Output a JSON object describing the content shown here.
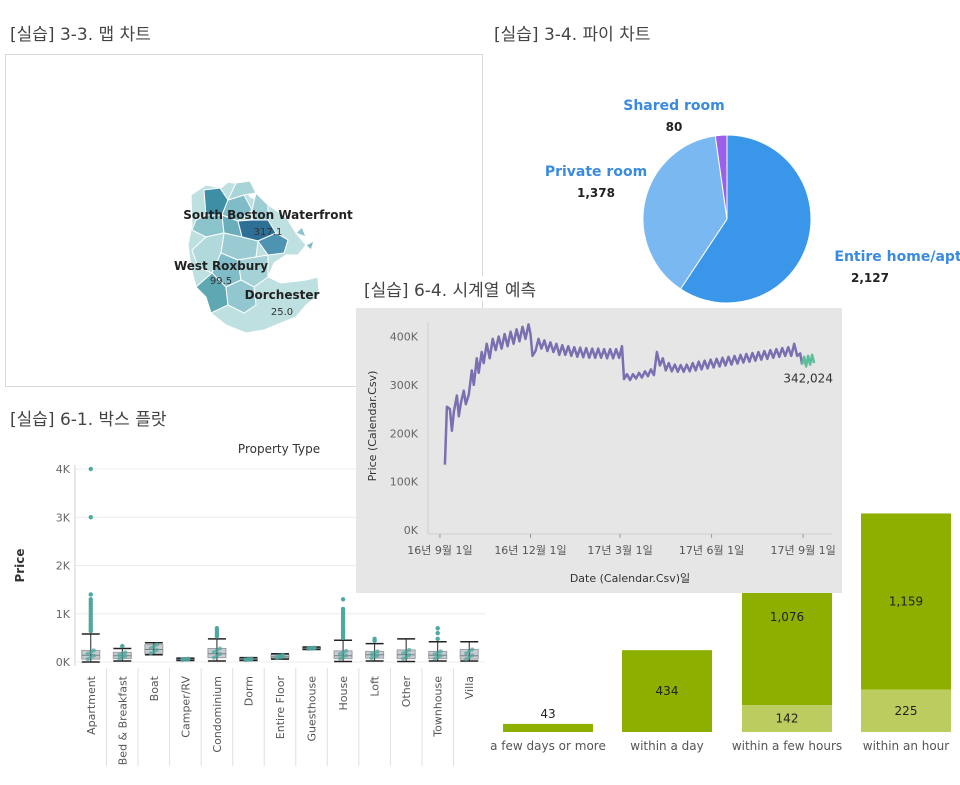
{
  "titles": {
    "map": "[실습] 3-3. 맵 차트",
    "pie": "[실습] 3-4. 파이 차트",
    "box": "[실습] 6-1. 박스 플랏",
    "ts": "[실습] 6-4. 시계열 예측"
  },
  "chart_data": [
    {
      "type": "map",
      "labels": [
        {
          "name": "South Boston Waterfront",
          "value": "317.1"
        },
        {
          "name": "West Roxbury",
          "value": "99.5"
        },
        {
          "name": "Dorchester",
          "value": "25.0"
        }
      ]
    },
    {
      "type": "pie",
      "slices": [
        {
          "name": "Entire home/apt",
          "value": 2127,
          "label": "2,127",
          "color": "#3a96e8"
        },
        {
          "name": "Private room",
          "value": 1378,
          "label": "1,378",
          "color": "#7ab8f1"
        },
        {
          "name": "Shared room",
          "value": 80,
          "label": "80",
          "color": "#9b5fe8"
        }
      ],
      "label_color": "#3a8be0"
    },
    {
      "type": "box",
      "title": "Property Type",
      "ylabel": "Price",
      "yticks": [
        "0K",
        "1K",
        "2K",
        "3K",
        "4K"
      ],
      "ylim": [
        0,
        4000
      ],
      "categories": [
        {
          "name": "Apartment",
          "q1": 60,
          "q3": 240,
          "lw": 0,
          "uw": 580,
          "med": 140,
          "outliers": [
            640,
            680,
            720,
            760,
            800,
            850,
            900,
            950,
            1000,
            1050,
            1100,
            1150,
            1200,
            1250,
            1300,
            1400,
            3000,
            4000
          ]
        },
        {
          "name": "Bed & Breakfast",
          "q1": 70,
          "q3": 200,
          "lw": 20,
          "uw": 280,
          "med": 130,
          "outliers": [
            330
          ]
        },
        {
          "name": "Boat",
          "q1": 180,
          "q3": 360,
          "lw": 150,
          "uw": 400,
          "med": 260,
          "outliers": []
        },
        {
          "name": "Camper/RV",
          "q1": 40,
          "q3": 70,
          "lw": 30,
          "uw": 80,
          "med": 55,
          "outliers": []
        },
        {
          "name": "Condominium",
          "q1": 90,
          "q3": 280,
          "lw": 20,
          "uw": 480,
          "med": 170,
          "outliers": [
            530,
            560,
            600,
            650,
            700
          ]
        },
        {
          "name": "Dorm",
          "q1": 40,
          "q3": 70,
          "lw": 30,
          "uw": 90,
          "med": 55,
          "outliers": []
        },
        {
          "name": "Entire Floor",
          "q1": 80,
          "q3": 150,
          "lw": 60,
          "uw": 170,
          "med": 110,
          "outliers": []
        },
        {
          "name": "Guesthouse",
          "q1": 270,
          "q3": 300,
          "lw": 260,
          "uw": 310,
          "med": 285,
          "outliers": []
        },
        {
          "name": "House",
          "q1": 70,
          "q3": 230,
          "lw": 10,
          "uw": 450,
          "med": 130,
          "outliers": [
            500,
            540,
            580,
            620,
            660,
            700,
            750,
            800,
            850,
            900,
            950,
            1000,
            1050,
            1100,
            1300
          ]
        },
        {
          "name": "Loft",
          "q1": 80,
          "q3": 220,
          "lw": 20,
          "uw": 380,
          "med": 150,
          "outliers": [
            440,
            480
          ]
        },
        {
          "name": "Other",
          "q1": 70,
          "q3": 250,
          "lw": 10,
          "uw": 480,
          "med": 150,
          "outliers": []
        },
        {
          "name": "Townhouse",
          "q1": 70,
          "q3": 220,
          "lw": 20,
          "uw": 420,
          "med": 140,
          "outliers": [
            480,
            600,
            700
          ]
        },
        {
          "name": "Villa",
          "q1": 60,
          "q3": 260,
          "lw": 20,
          "uw": 420,
          "med": 130,
          "outliers": []
        }
      ],
      "colors": {
        "box": "#9aa0a6",
        "point": "#4fa8a0",
        "whisker": "#222222"
      }
    },
    {
      "type": "line",
      "ylabel": "Price (Calendar.Csv)",
      "xlabel": "Date (Calendar.Csv)일",
      "yticks": [
        "0K",
        "100K",
        "200K",
        "300K",
        "400K"
      ],
      "ylim": [
        0,
        430000
      ],
      "xticks": [
        {
          "label": "16년 9월 1일",
          "date": "2016-09-01"
        },
        {
          "label": "16년 12월 1일",
          "date": "2016-12-01"
        },
        {
          "label": "17년 3월 1일",
          "date": "2017-03-01"
        },
        {
          "label": "17년 6월 1일",
          "date": "2017-06-01"
        },
        {
          "label": "17년 9월 1일",
          "date": "2017-09-01"
        }
      ],
      "xlim": [
        "2016-08-20",
        "2017-09-30"
      ],
      "last_label": "342,024",
      "series": [
        {
          "values": [
            [
              "2016-09-06",
              135000
            ],
            [
              "2016-09-08",
              255000
            ],
            [
              "2016-09-11",
              250000
            ],
            [
              "2016-09-13",
              205000
            ],
            [
              "2016-09-15",
              245000
            ],
            [
              "2016-09-18",
              278000
            ],
            [
              "2016-09-20",
              235000
            ],
            [
              "2016-09-22",
              262000
            ],
            [
              "2016-09-25",
              288000
            ],
            [
              "2016-09-27",
              260000
            ],
            [
              "2016-09-30",
              280000
            ],
            [
              "2016-10-03",
              330000
            ],
            [
              "2016-10-05",
              300000
            ],
            [
              "2016-10-08",
              355000
            ],
            [
              "2016-10-10",
              325000
            ],
            [
              "2016-10-13",
              368000
            ],
            [
              "2016-10-15",
              345000
            ],
            [
              "2016-10-18",
              385000
            ],
            [
              "2016-10-21",
              355000
            ],
            [
              "2016-10-24",
              395000
            ],
            [
              "2016-10-27",
              372000
            ],
            [
              "2016-10-30",
              400000
            ],
            [
              "2016-11-02",
              375000
            ],
            [
              "2016-11-05",
              405000
            ],
            [
              "2016-11-08",
              380000
            ],
            [
              "2016-11-11",
              410000
            ],
            [
              "2016-11-14",
              385000
            ],
            [
              "2016-11-17",
              415000
            ],
            [
              "2016-11-20",
              390000
            ],
            [
              "2016-11-23",
              420000
            ],
            [
              "2016-11-26",
              395000
            ],
            [
              "2016-11-29",
              425000
            ],
            [
              "2016-12-01",
              405000
            ],
            [
              "2016-12-03",
              360000
            ],
            [
              "2016-12-06",
              370000
            ],
            [
              "2016-12-09",
              395000
            ],
            [
              "2016-12-12",
              375000
            ],
            [
              "2016-12-15",
              392000
            ],
            [
              "2016-12-18",
              370000
            ],
            [
              "2016-12-21",
              388000
            ],
            [
              "2016-12-24",
              368000
            ],
            [
              "2016-12-27",
              385000
            ],
            [
              "2016-12-30",
              362000
            ],
            [
              "2017-01-02",
              382000
            ],
            [
              "2017-01-05",
              362000
            ],
            [
              "2017-01-08",
              380000
            ],
            [
              "2017-01-11",
              360000
            ],
            [
              "2017-01-14",
              378000
            ],
            [
              "2017-01-17",
              358000
            ],
            [
              "2017-01-20",
              377000
            ],
            [
              "2017-01-23",
              357000
            ],
            [
              "2017-01-26",
              376000
            ],
            [
              "2017-01-29",
              356000
            ],
            [
              "2017-02-01",
              375000
            ],
            [
              "2017-02-04",
              356000
            ],
            [
              "2017-02-07",
              375000
            ],
            [
              "2017-02-10",
              356000
            ],
            [
              "2017-02-13",
              374000
            ],
            [
              "2017-02-16",
              355000
            ],
            [
              "2017-02-19",
              374000
            ],
            [
              "2017-02-22",
              355000
            ],
            [
              "2017-02-25",
              374000
            ],
            [
              "2017-02-28",
              356000
            ],
            [
              "2017-03-03",
              380000
            ],
            [
              "2017-03-05",
              312000
            ],
            [
              "2017-03-08",
              322000
            ],
            [
              "2017-03-11",
              310000
            ],
            [
              "2017-03-14",
              322000
            ],
            [
              "2017-03-17",
              313000
            ],
            [
              "2017-03-20",
              325000
            ],
            [
              "2017-03-23",
              315000
            ],
            [
              "2017-03-26",
              328000
            ],
            [
              "2017-03-29",
              318000
            ],
            [
              "2017-04-01",
              332000
            ],
            [
              "2017-04-04",
              320000
            ],
            [
              "2017-04-07",
              368000
            ],
            [
              "2017-04-10",
              340000
            ],
            [
              "2017-04-13",
              355000
            ],
            [
              "2017-04-16",
              330000
            ],
            [
              "2017-04-19",
              345000
            ],
            [
              "2017-04-22",
              328000
            ],
            [
              "2017-04-25",
              342000
            ],
            [
              "2017-04-28",
              327000
            ],
            [
              "2017-05-01",
              341000
            ],
            [
              "2017-05-04",
              327000
            ],
            [
              "2017-05-07",
              342000
            ],
            [
              "2017-05-10",
              328000
            ],
            [
              "2017-05-13",
              345000
            ],
            [
              "2017-05-16",
              330000
            ],
            [
              "2017-05-19",
              348000
            ],
            [
              "2017-05-22",
              332000
            ],
            [
              "2017-05-25",
              350000
            ],
            [
              "2017-05-28",
              334000
            ],
            [
              "2017-05-31",
              352000
            ],
            [
              "2017-06-03",
              336000
            ],
            [
              "2017-06-06",
              354000
            ],
            [
              "2017-06-09",
              338000
            ],
            [
              "2017-06-12",
              356000
            ],
            [
              "2017-06-15",
              340000
            ],
            [
              "2017-06-18",
              358000
            ],
            [
              "2017-06-21",
              342000
            ],
            [
              "2017-06-24",
              360000
            ],
            [
              "2017-06-27",
              344000
            ],
            [
              "2017-06-30",
              362000
            ],
            [
              "2017-07-03",
              346000
            ],
            [
              "2017-07-06",
              364000
            ],
            [
              "2017-07-09",
              348000
            ],
            [
              "2017-07-12",
              366000
            ],
            [
              "2017-07-15",
              350000
            ],
            [
              "2017-07-18",
              368000
            ],
            [
              "2017-07-21",
              352000
            ],
            [
              "2017-07-24",
              370000
            ],
            [
              "2017-07-27",
              354000
            ],
            [
              "2017-07-30",
              372000
            ],
            [
              "2017-08-02",
              356000
            ],
            [
              "2017-08-05",
              374000
            ],
            [
              "2017-08-08",
              358000
            ],
            [
              "2017-08-11",
              376000
            ],
            [
              "2017-08-14",
              360000
            ],
            [
              "2017-08-17",
              378000
            ],
            [
              "2017-08-20",
              360000
            ],
            [
              "2017-08-23",
              385000
            ],
            [
              "2017-08-26",
              360000
            ],
            [
              "2017-08-29",
              365000
            ],
            [
              "2017-08-31",
              342024
            ]
          ],
          "color": "#7b6fb2"
        },
        {
          "values": [
            [
              "2017-08-31",
              342024
            ],
            [
              "2017-09-02",
              358000
            ],
            [
              "2017-09-04",
              338000
            ],
            [
              "2017-09-06",
              360000
            ],
            [
              "2017-09-08",
              342000
            ],
            [
              "2017-09-10",
              362000
            ],
            [
              "2017-09-12",
              345000
            ]
          ],
          "color": "#5bbf9a"
        }
      ]
    },
    {
      "type": "bar",
      "categories": [
        "a few days or more",
        "within a day",
        "within a few hours",
        "within an hour"
      ],
      "series": [
        {
          "values": [
            0,
            0,
            142,
            225
          ],
          "labels": [
            "",
            "",
            "142",
            "225"
          ],
          "color": "#bccc5e"
        },
        {
          "values": [
            43,
            434,
            1076,
            1159
          ],
          "labels": [
            "43",
            "434",
            "1,076",
            "1,159"
          ],
          "color": "#8db000"
        }
      ],
      "max": 1384
    }
  ]
}
